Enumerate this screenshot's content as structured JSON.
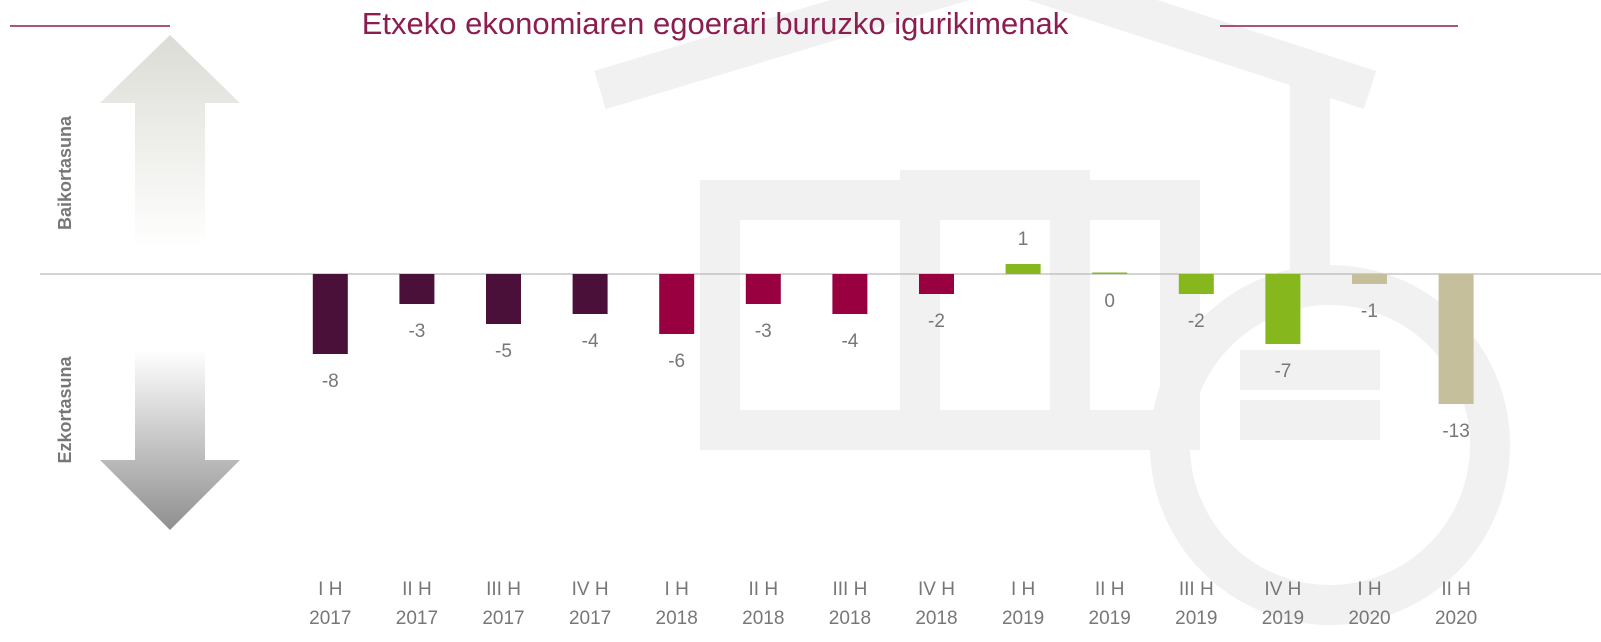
{
  "chart_data": {
    "type": "bar",
    "title": "Etxeko ekonomiaren egoerari buruzko igurikimenak",
    "upper_label": "Baikortasuna",
    "lower_label": "Ezkortasuna",
    "categories": [
      [
        "I H",
        "2017"
      ],
      [
        "II H",
        "2017"
      ],
      [
        "III H",
        "2017"
      ],
      [
        "IV H",
        "2017"
      ],
      [
        "I H",
        "2018"
      ],
      [
        "II H",
        "2018"
      ],
      [
        "III H",
        "2018"
      ],
      [
        "IV H",
        "2018"
      ],
      [
        "I H",
        "2019"
      ],
      [
        "II H",
        "2019"
      ],
      [
        "III H",
        "2019"
      ],
      [
        "IV H",
        "2019"
      ],
      [
        "I H",
        "2020"
      ],
      [
        "II H",
        "2020"
      ]
    ],
    "values": [
      -8,
      -3,
      -5,
      -4,
      -6,
      -3,
      -4,
      -2,
      1,
      0,
      -2,
      -7,
      -1,
      -13
    ],
    "colors": [
      "#4a1039",
      "#4a1039",
      "#4a1039",
      "#4a1039",
      "#990040",
      "#990040",
      "#990040",
      "#990040",
      "#86b81e",
      "#86b81e",
      "#86b81e",
      "#86b81e",
      "#c6bf9b",
      "#c6bf9b"
    ],
    "ylim": [
      -20,
      20
    ]
  }
}
